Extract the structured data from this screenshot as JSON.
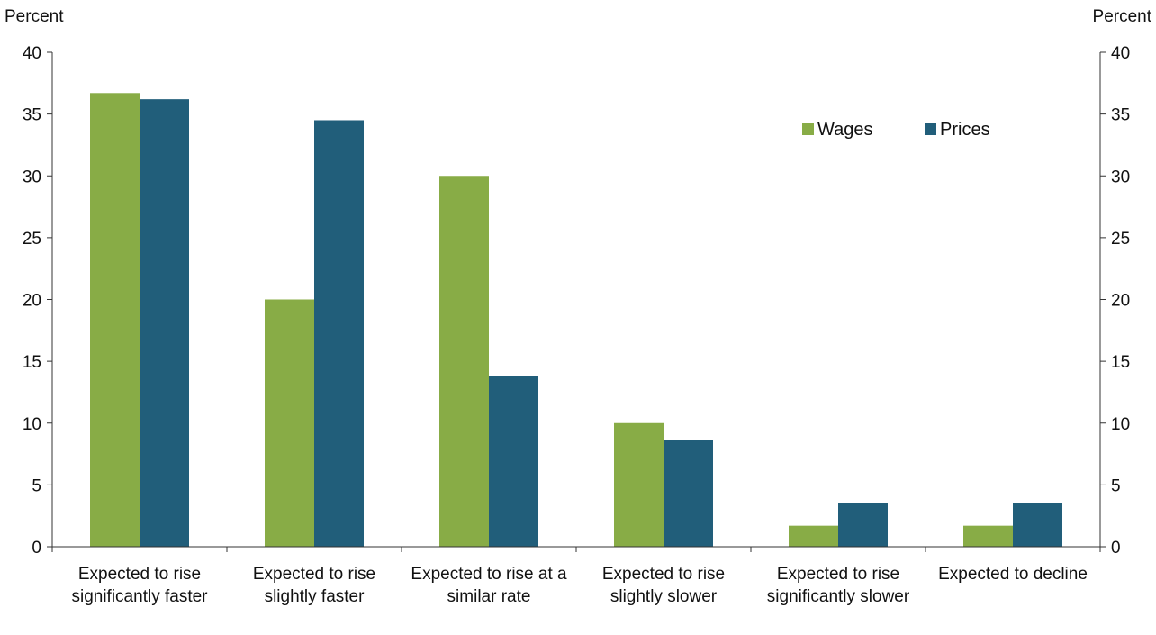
{
  "chart_data": {
    "type": "bar",
    "title": "",
    "y_unit_left": "Percent",
    "y_unit_right": "Percent",
    "ylim": [
      0,
      40
    ],
    "yticks": [
      0,
      5,
      10,
      15,
      20,
      25,
      30,
      35,
      40
    ],
    "categories": [
      "Expected to rise significantly faster",
      "Expected to rise slightly faster",
      "Expected to rise at a similar rate",
      "Expected to rise slightly slower",
      "Expected to rise significantly slower",
      "Expected to decline"
    ],
    "series": [
      {
        "name": "Wages",
        "color": "#88ac46",
        "values": [
          36.7,
          20.0,
          30.0,
          10.0,
          1.7,
          1.7
        ]
      },
      {
        "name": "Prices",
        "color": "#215e7a",
        "values": [
          36.2,
          34.5,
          13.8,
          8.6,
          3.5,
          3.5
        ]
      }
    ],
    "legend": "top-right",
    "grid": false
  }
}
